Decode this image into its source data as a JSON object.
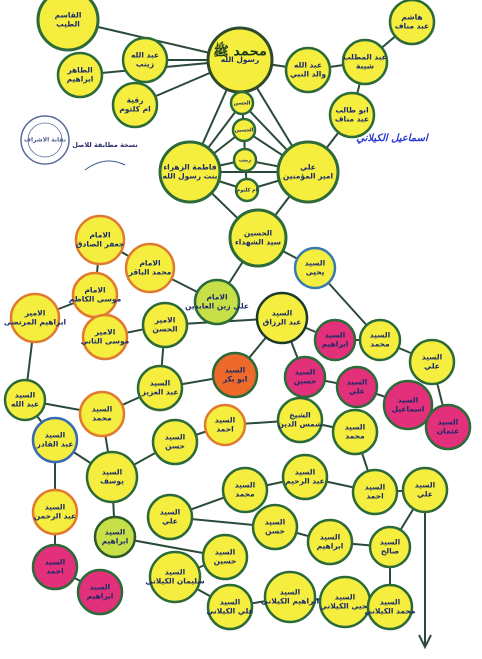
{
  "title": [
    "محمد ﷺ"
  ],
  "nodes": [
    {
      "label": [
        "القاسم",
        "الطيب"
      ]
    },
    {
      "label": [
        "الطاهر",
        "ابراهيم"
      ]
    },
    {
      "label": [
        "عبد الله",
        "زينب"
      ]
    },
    {
      "label": [
        "رقية",
        "ام كلثوم"
      ]
    },
    {
      "label": [
        "رسول الله"
      ]
    },
    {
      "label": [
        "هاشم",
        "عبد مناف"
      ]
    },
    {
      "label": [
        "عبد المطلب",
        "شيبة"
      ]
    },
    {
      "label": [
        "عبد الله",
        "والد النبي"
      ]
    },
    {
      "label": [
        "ابو طالب",
        "عبد مناف"
      ]
    },
    {
      "label": [
        "الحسن"
      ]
    },
    {
      "label": [
        "الحسين"
      ]
    },
    {
      "label": [
        "زينب"
      ]
    },
    {
      "label": [
        "ام كلثوم"
      ]
    },
    {
      "label": [
        "فاطمة الزهراء",
        "بنت رسول الله"
      ]
    },
    {
      "label": [
        "علي",
        "امير المؤمنين"
      ]
    },
    {
      "label": [
        "الحسين",
        "سيد الشهداء"
      ]
    },
    {
      "label": [
        "الامام",
        "جعفر الصادق"
      ]
    },
    {
      "label": [
        "الامام",
        "محمد الباقر"
      ]
    },
    {
      "label": [
        "الامام",
        "علي زين العابدين"
      ]
    },
    {
      "label": [
        "الامام",
        "موسى الكاظم"
      ]
    },
    {
      "label": [
        "الامير",
        "ابراهيم المرتضى"
      ]
    },
    {
      "label": [
        "الامير",
        "موسى الثاني"
      ]
    },
    {
      "label": [
        "الامير",
        "الحسن"
      ]
    },
    {
      "label": [
        "السيد",
        "عبد الرزاق"
      ]
    },
    {
      "label": [
        "السيد",
        "ابراهيم"
      ]
    },
    {
      "label": [
        "السيد",
        "محمد"
      ]
    },
    {
      "label": [
        "السيد",
        "علي"
      ]
    },
    {
      "label": [
        "السيد",
        "يحيى"
      ]
    },
    {
      "label": [
        "السيد",
        "عبد العزيز"
      ]
    },
    {
      "label": [
        "السيد",
        "ابو بكر"
      ]
    },
    {
      "label": [
        "السيد",
        "حسين"
      ]
    },
    {
      "label": [
        "السيد",
        "علي"
      ]
    },
    {
      "label": [
        "السيد",
        "اسماعيل"
      ]
    },
    {
      "label": [
        "السيد",
        "عثمان"
      ]
    },
    {
      "label": [
        "السيد",
        "عبد الله"
      ]
    },
    {
      "label": [
        "السيد",
        "محمد"
      ]
    },
    {
      "label": [
        "السيد",
        "عبد القادر"
      ]
    },
    {
      "label": [
        "السيد",
        "حسن"
      ]
    },
    {
      "label": [
        "السيد",
        "احمد"
      ]
    },
    {
      "label": [
        "الشيخ",
        "شمس الدين"
      ]
    },
    {
      "label": [
        "السيد",
        "محمد"
      ]
    },
    {
      "label": [
        "السيد",
        "احمد"
      ]
    },
    {
      "label": [
        "السيد",
        "عبد الرحيم"
      ]
    },
    {
      "label": [
        "السيد",
        "محمد"
      ]
    },
    {
      "label": [
        "السيد",
        "علي"
      ]
    },
    {
      "label": [
        "السيد",
        "يوسف"
      ]
    },
    {
      "label": [
        "السيد",
        "عبد الرحمن"
      ]
    },
    {
      "label": [
        "السيد",
        "ابراهيم"
      ]
    },
    {
      "label": [
        "السيد",
        "علي"
      ]
    },
    {
      "label": [
        "السيد",
        "حسن"
      ]
    },
    {
      "label": [
        "السيد",
        "ابراهيم"
      ]
    },
    {
      "label": [
        "السيد",
        "صالح"
      ]
    },
    {
      "label": [
        "السيد",
        "حسين"
      ]
    },
    {
      "label": [
        "السيد",
        "احمد"
      ]
    },
    {
      "label": [
        "السيد",
        "ابراهيم"
      ]
    },
    {
      "label": [
        "السيد",
        "سليمان الكيلاني"
      ]
    },
    {
      "label": [
        "السيد",
        "علي الكيلاني"
      ]
    },
    {
      "label": [
        "السيد",
        "ابراهيم الكيلاني"
      ]
    },
    {
      "label": [
        "السيد",
        "يحيى الكيلاني"
      ]
    },
    {
      "label": [
        "السيد",
        "محمد الكيلاني"
      ]
    }
  ],
  "stamp": [
    "نقابة الاشراف"
  ],
  "stamp_note": [
    "نسخة مطابقة للاصل"
  ],
  "signature": [
    "اسماعيل الكيلاني"
  ]
}
